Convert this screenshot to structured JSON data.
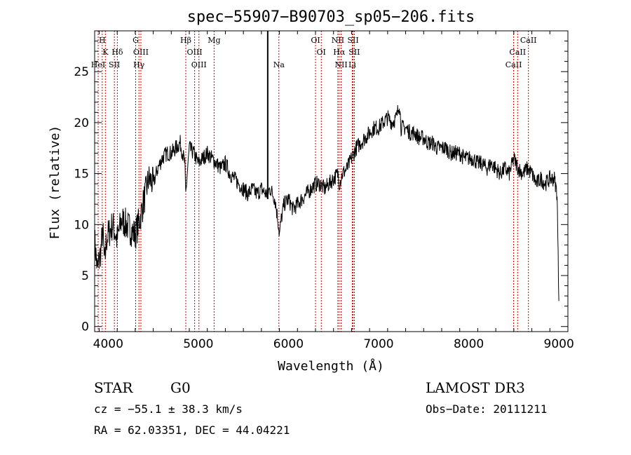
{
  "title": "spec−55907−B90703_sp05−206.fits",
  "chart_data": {
    "type": "line",
    "title": "spec−55907−B90703_sp05−206.fits",
    "xlabel": "Wavelength (Å)",
    "ylabel": "Flux (relative)",
    "xlim": [
      3850,
      9100
    ],
    "ylim": [
      -0.5,
      29
    ],
    "xticks": [
      4000,
      5000,
      6000,
      7000,
      8000,
      9000
    ],
    "yticks": [
      0,
      5,
      10,
      15,
      20,
      25
    ],
    "series": [
      {
        "name": "spectrum",
        "x": [
          3850,
          3880,
          3900,
          3920,
          3940,
          3960,
          3980,
          4000,
          4050,
          4100,
          4150,
          4200,
          4250,
          4300,
          4350,
          4400,
          4450,
          4500,
          4550,
          4600,
          4650,
          4700,
          4750,
          4800,
          4850,
          4860,
          4900,
          4950,
          5000,
          5050,
          5100,
          5150,
          5200,
          5250,
          5300,
          5350,
          5400,
          5450,
          5500,
          5550,
          5600,
          5650,
          5700,
          5750,
          5800,
          5850,
          5890,
          5900,
          5920,
          5950,
          6000,
          6050,
          6100,
          6150,
          6200,
          6250,
          6300,
          6350,
          6400,
          6450,
          6500,
          6550,
          6563,
          6600,
          6650,
          6700,
          6750,
          6800,
          6850,
          6900,
          6950,
          7000,
          7050,
          7100,
          7150,
          7200,
          7230,
          7250,
          7300,
          7350,
          7400,
          7450,
          7500,
          7550,
          7600,
          7650,
          7700,
          7750,
          7800,
          7850,
          7900,
          7950,
          8000,
          8050,
          8100,
          8150,
          8200,
          8250,
          8300,
          8350,
          8400,
          8450,
          8500,
          8550,
          8600,
          8650,
          8700,
          8750,
          8800,
          8850,
          8900,
          8950,
          8980,
          9000
        ],
        "y": [
          8.5,
          5.5,
          6.5,
          7.5,
          9.5,
          6.0,
          8.5,
          9.0,
          10.0,
          8.5,
          10.5,
          10.0,
          9.5,
          9.0,
          10.5,
          12.5,
          14.5,
          14.0,
          15.5,
          16.5,
          17.0,
          17.0,
          17.5,
          18.0,
          16.0,
          13.0,
          17.5,
          17.0,
          16.0,
          16.5,
          17.0,
          16.5,
          16.0,
          15.5,
          16.0,
          15.0,
          14.5,
          14.0,
          13.5,
          13.0,
          13.5,
          13.0,
          13.5,
          13.0,
          13.5,
          12.5,
          10.0,
          9.0,
          10.5,
          12.0,
          12.5,
          11.5,
          12.0,
          12.5,
          13.0,
          13.5,
          14.0,
          14.0,
          13.5,
          14.0,
          14.5,
          15.0,
          14.0,
          15.0,
          15.5,
          16.5,
          17.5,
          18.0,
          18.5,
          19.0,
          19.5,
          19.5,
          20.0,
          20.5,
          20.0,
          20.5,
          22.0,
          19.5,
          19.5,
          19.0,
          19.0,
          18.5,
          18.5,
          18.0,
          18.0,
          17.5,
          17.5,
          17.5,
          17.0,
          17.0,
          17.0,
          16.5,
          16.5,
          16.5,
          16.0,
          16.0,
          15.5,
          16.0,
          15.5,
          15.0,
          15.5,
          15.0,
          16.5,
          15.5,
          15.0,
          15.5,
          15.0,
          14.0,
          14.5,
          14.0,
          14.5,
          14.5,
          13.0,
          2.5
        ]
      }
    ],
    "marker_wavelength": 5770,
    "lines": [
      {
        "label": "H",
        "wavelength": 3934,
        "row": 1
      },
      {
        "label": "K",
        "wavelength": 3969,
        "row": 2
      },
      {
        "label": "HeI",
        "wavelength": 3889,
        "row": 3
      },
      {
        "label": "SII",
        "wavelength": 4069,
        "row": 3
      },
      {
        "label": "Hδ",
        "wavelength": 4102,
        "row": 2
      },
      {
        "label": "G",
        "wavelength": 4305,
        "row": 1
      },
      {
        "label": "OIII",
        "wavelength": 4363,
        "row": 2
      },
      {
        "label": "Hγ",
        "wavelength": 4341,
        "row": 3
      },
      {
        "label": "Hβ",
        "wavelength": 4861,
        "row": 1
      },
      {
        "label": "OIII",
        "wavelength": 4959,
        "row": 2
      },
      {
        "label": "OIII",
        "wavelength": 5007,
        "row": 3
      },
      {
        "label": "Mg",
        "wavelength": 5175,
        "row": 1
      },
      {
        "label": "Na",
        "wavelength": 5894,
        "row": 3
      },
      {
        "label": "OI",
        "wavelength": 6300,
        "row": 1
      },
      {
        "label": "OI",
        "wavelength": 6364,
        "row": 2
      },
      {
        "label": "NII",
        "wavelength": 6548,
        "row": 1
      },
      {
        "label": "Hα",
        "wavelength": 6563,
        "row": 2
      },
      {
        "label": "NII",
        "wavelength": 6584,
        "row": 3
      },
      {
        "label": "SII",
        "wavelength": 6717,
        "row": 1
      },
      {
        "label": "SII",
        "wavelength": 6731,
        "row": 2
      },
      {
        "label": "Li",
        "wavelength": 6708,
        "row": 3
      },
      {
        "label": "CaII",
        "wavelength": 8498,
        "row": 3
      },
      {
        "label": "CaII",
        "wavelength": 8542,
        "row": 2
      },
      {
        "label": "CaII",
        "wavelength": 8662,
        "row": 1
      }
    ]
  },
  "info": {
    "class": "STAR",
    "subclass": "G0",
    "survey": "LAMOST DR3",
    "cz": "cz = −55.1 ± 38.3 km/s",
    "obs_date": "Obs−Date: 20111211",
    "radec": "RA =  62.03351, DEC =  44.04221"
  },
  "colors": {
    "line_marker": "#cc0000",
    "axis": "#000000",
    "spectrum": "#000000"
  }
}
